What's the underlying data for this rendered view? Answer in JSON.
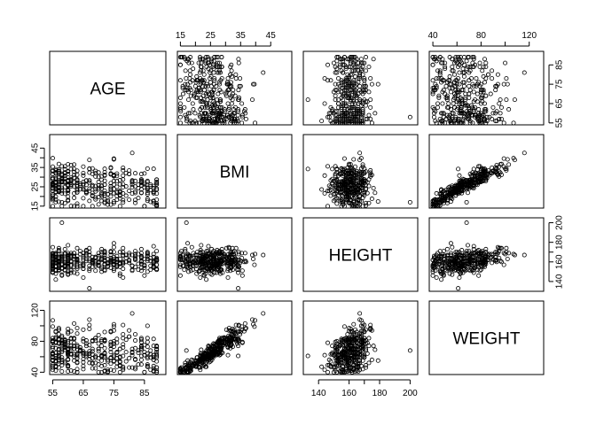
{
  "chart_data": {
    "type": "scatter",
    "variables": [
      "AGE",
      "BMI",
      "HEIGHT",
      "WEIGHT"
    ],
    "axes": {
      "AGE": {
        "lim": [
          54,
          92
        ],
        "ticks": [
          55,
          65,
          75,
          85
        ]
      },
      "BMI": {
        "lim": [
          14,
          52
        ],
        "ticks": [
          15,
          25,
          35,
          45
        ],
        "minor_ticks": [
          20,
          30,
          40
        ]
      },
      "HEIGHT": {
        "lim": [
          130,
          205
        ],
        "ticks": [
          140,
          160,
          180,
          200
        ],
        "minor_ticks": [
          170
        ]
      },
      "WEIGHT": {
        "lim": [
          37,
          132
        ],
        "ticks": [
          40,
          80,
          120
        ],
        "minor_ticks": [
          60,
          100
        ]
      }
    },
    "tick_sides": {
      "top": [
        1,
        3
      ],
      "bottom": [
        0,
        2
      ],
      "left": [
        1,
        3
      ],
      "right": [
        0,
        2
      ]
    },
    "grid": false,
    "legend": "none",
    "point_color": "#000000",
    "n_points": 360
  }
}
